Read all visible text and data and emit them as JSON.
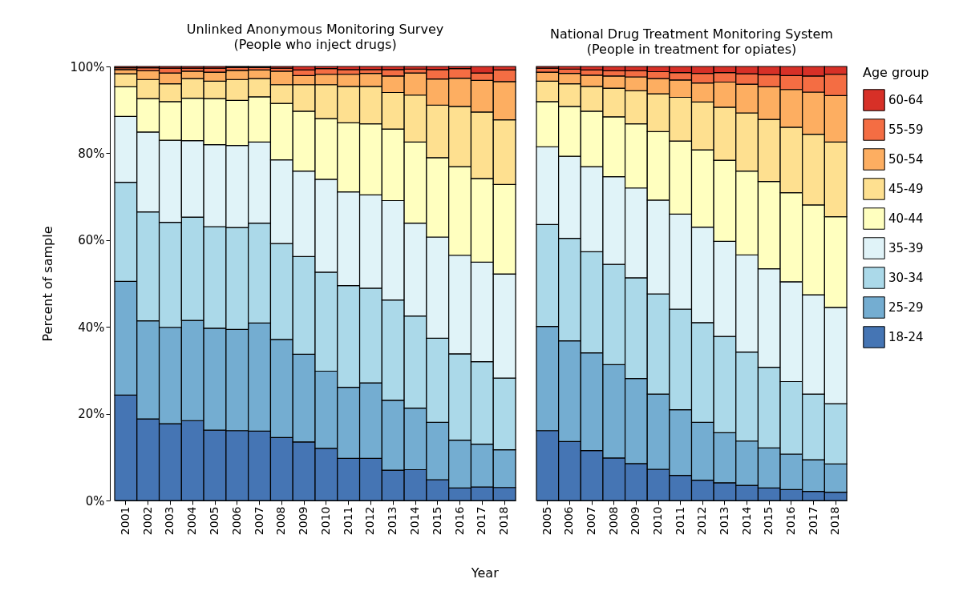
{
  "chart_data": [
    {
      "type": "bar",
      "stacked": true,
      "title": "Unlinked Anonymous Monitoring Survey",
      "subtitle": "(People who inject drugs)",
      "xlabel": "Year",
      "ylabel": "Percent of sample",
      "categories": [
        "2001",
        "2002",
        "2003",
        "2004",
        "2005",
        "2006",
        "2007",
        "2008",
        "2009",
        "2010",
        "2011",
        "2012",
        "2013",
        "2014",
        "2015",
        "2016",
        "2017",
        "2018"
      ],
      "ylim": [
        0,
        100
      ],
      "yticks": [
        {
          "value": 0,
          "label": "0%"
        },
        {
          "value": 20,
          "label": "20%"
        },
        {
          "value": 40,
          "label": "40%"
        },
        {
          "value": 60,
          "label": "60%"
        },
        {
          "value": 80,
          "label": "80%"
        },
        {
          "value": 100,
          "label": "100%"
        }
      ],
      "legend": "right",
      "series": [
        {
          "name": "18-24",
          "color": "#4575b4",
          "values": [
            24.3,
            18.8,
            17.7,
            18.4,
            16.2,
            16.1,
            16.0,
            14.5,
            13.5,
            12.0,
            9.7,
            9.7,
            7.0,
            7.1,
            4.8,
            2.9,
            3.1,
            3.0
          ]
        },
        {
          "name": "25-29",
          "color": "#74add1",
          "values": [
            26.2,
            22.6,
            22.2,
            23.1,
            23.5,
            23.3,
            24.9,
            22.6,
            20.2,
            17.8,
            16.4,
            17.4,
            16.1,
            14.2,
            13.2,
            11.0,
            9.9,
            8.7
          ]
        },
        {
          "name": "30-34",
          "color": "#abd9e9",
          "values": [
            22.8,
            25.1,
            24.2,
            23.8,
            23.4,
            23.5,
            23.0,
            22.1,
            22.5,
            22.8,
            23.4,
            21.8,
            23.1,
            21.2,
            19.4,
            19.9,
            19.0,
            16.5
          ]
        },
        {
          "name": "35-39",
          "color": "#e0f3f8",
          "values": [
            15.2,
            18.4,
            18.9,
            17.6,
            18.9,
            18.9,
            18.7,
            19.3,
            19.7,
            21.4,
            21.6,
            21.5,
            22.9,
            21.4,
            23.3,
            22.7,
            22.9,
            24.0
          ]
        },
        {
          "name": "40-44",
          "color": "#ffffbf",
          "values": [
            6.8,
            7.7,
            8.9,
            9.8,
            10.6,
            10.4,
            10.4,
            13.0,
            13.8,
            14.0,
            15.9,
            16.4,
            16.5,
            18.7,
            18.3,
            20.4,
            19.3,
            20.6
          ]
        },
        {
          "name": "45-49",
          "color": "#fee090",
          "values": [
            3.0,
            4.4,
            4.1,
            4.5,
            4.0,
            4.8,
            4.2,
            4.3,
            6.1,
            7.8,
            8.4,
            8.6,
            8.4,
            10.8,
            12.1,
            13.9,
            15.3,
            14.9
          ]
        },
        {
          "name": "50-54",
          "color": "#fdae61",
          "values": [
            1.0,
            2.0,
            2.5,
            1.7,
            2.1,
            2.1,
            2.0,
            3.1,
            2.1,
            2.4,
            2.8,
            3.0,
            3.8,
            5.1,
            6.0,
            6.5,
            7.3,
            8.8
          ]
        },
        {
          "name": "55-59",
          "color": "#f46d43",
          "values": [
            0.4,
            0.7,
            1.1,
            0.7,
            0.9,
            0.7,
            0.6,
            0.7,
            1.3,
            1.3,
            1.1,
            0.9,
            1.5,
            0.9,
            2.2,
            2.2,
            1.7,
            2.7
          ]
        },
        {
          "name": "60-64",
          "color": "#d73027",
          "values": [
            0.3,
            0.3,
            0.4,
            0.4,
            0.4,
            0.2,
            0.2,
            0.4,
            0.8,
            0.5,
            0.7,
            0.7,
            0.7,
            0.6,
            0.7,
            0.5,
            1.5,
            0.8
          ]
        }
      ]
    },
    {
      "type": "bar",
      "stacked": true,
      "title": "National Drug Treatment Monitoring System",
      "subtitle": "(People in treatment for opiates)",
      "legend_title": "Age group",
      "categories": [
        "2005",
        "2006",
        "2007",
        "2008",
        "2009",
        "2010",
        "2011",
        "2012",
        "2013",
        "2014",
        "2015",
        "2016",
        "2017",
        "2018"
      ],
      "ylim": [
        0,
        100
      ],
      "tick_labels": "x",
      "legend": "right",
      "series": [
        {
          "name": "18-24",
          "color": "#4575b4",
          "values": [
            16.1,
            13.6,
            11.5,
            9.8,
            8.5,
            7.2,
            5.8,
            4.7,
            4.1,
            3.5,
            2.9,
            2.5,
            2.1,
            1.9
          ]
        },
        {
          "name": "25-29",
          "color": "#74add1",
          "values": [
            24.0,
            23.2,
            22.5,
            21.5,
            19.6,
            17.3,
            15.1,
            13.3,
            11.5,
            10.2,
            9.2,
            8.2,
            7.3,
            6.5
          ]
        },
        {
          "name": "30-34",
          "color": "#abd9e9",
          "values": [
            23.5,
            23.6,
            23.3,
            23.1,
            23.2,
            23.1,
            23.2,
            23.0,
            22.2,
            20.5,
            18.6,
            16.7,
            15.1,
            13.9
          ]
        },
        {
          "name": "35-39",
          "color": "#e0f3f8",
          "values": [
            17.9,
            18.9,
            19.6,
            20.2,
            20.7,
            21.6,
            21.9,
            22.0,
            21.9,
            22.4,
            22.7,
            23.0,
            22.9,
            22.2
          ]
        },
        {
          "name": "40-44",
          "color": "#ffffbf",
          "values": [
            10.4,
            11.5,
            12.8,
            13.8,
            14.8,
            15.8,
            16.8,
            17.8,
            18.7,
            19.3,
            20.1,
            20.5,
            20.7,
            20.9
          ]
        },
        {
          "name": "45-49",
          "color": "#fee090",
          "values": [
            4.7,
            5.2,
            5.7,
            6.6,
            7.6,
            8.7,
            10.1,
            11.0,
            12.2,
            13.4,
            14.3,
            15.1,
            16.3,
            17.2
          ]
        },
        {
          "name": "50-54",
          "color": "#fdae61",
          "values": [
            2.1,
            2.4,
            2.6,
            2.8,
            3.2,
            3.5,
            4.0,
            4.4,
            5.8,
            6.6,
            7.5,
            8.7,
            9.7,
            10.7
          ]
        },
        {
          "name": "55-59",
          "color": "#f46d43",
          "values": [
            0.9,
            1.0,
            1.2,
            1.2,
            1.4,
            1.6,
            1.7,
            2.2,
            2.2,
            2.4,
            2.8,
            3.2,
            3.7,
            4.9
          ]
        },
        {
          "name": "60-64",
          "color": "#d73027",
          "values": [
            0.4,
            0.6,
            0.8,
            1.0,
            1.0,
            1.2,
            1.4,
            1.6,
            1.4,
            1.7,
            1.9,
            2.1,
            2.2,
            1.8
          ]
        }
      ]
    }
  ]
}
